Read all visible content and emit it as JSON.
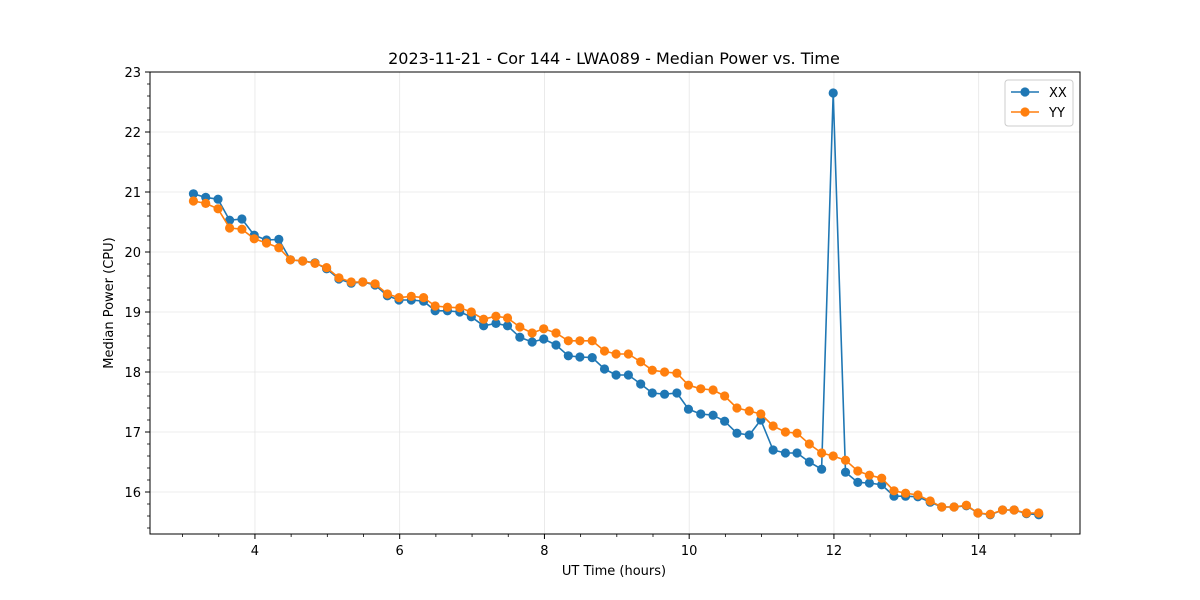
{
  "chart_data": {
    "type": "line",
    "title": "2023-11-21 - Cor 144 - LWA089 - Median Power vs. Time",
    "xlabel": "UT Time (hours)",
    "ylabel": "Median Power (CPU)",
    "xlim": [
      2.55,
      15.4
    ],
    "ylim": [
      15.3,
      23.0
    ],
    "xticks": [
      4,
      6,
      8,
      10,
      12,
      14
    ],
    "xtick_labels": [
      "4",
      "6",
      "8",
      "10",
      "12",
      "14"
    ],
    "yticks": [
      16,
      17,
      18,
      19,
      20,
      21,
      22,
      23
    ],
    "ytick_labels": [
      "16",
      "17",
      "18",
      "19",
      "20",
      "21",
      "22",
      "23"
    ],
    "grid": true,
    "legend_position": "top-right",
    "x": [
      3.15,
      3.32,
      3.49,
      3.65,
      3.82,
      3.99,
      4.16,
      4.33,
      4.49,
      4.66,
      4.83,
      4.99,
      5.16,
      5.33,
      5.49,
      5.66,
      5.83,
      5.99,
      6.16,
      6.33,
      6.49,
      6.66,
      6.83,
      6.99,
      7.16,
      7.33,
      7.49,
      7.66,
      7.83,
      7.99,
      8.16,
      8.33,
      8.49,
      8.66,
      8.83,
      8.99,
      9.16,
      9.33,
      9.49,
      9.66,
      9.83,
      9.99,
      10.16,
      10.33,
      10.49,
      10.66,
      10.83,
      10.99,
      11.16,
      11.33,
      11.49,
      11.66,
      11.83,
      11.99,
      12.16,
      12.33,
      12.49,
      12.66,
      12.83,
      12.99,
      13.16,
      13.33,
      13.49,
      13.66,
      13.83,
      13.99,
      14.16,
      14.33,
      14.49,
      14.66,
      14.83
    ],
    "series": [
      {
        "name": "XX",
        "color": "#1f77b4",
        "values": [
          20.97,
          20.91,
          20.88,
          20.53,
          20.55,
          20.28,
          20.2,
          20.21,
          19.87,
          19.85,
          19.82,
          19.72,
          19.55,
          19.48,
          19.5,
          19.45,
          19.27,
          19.2,
          19.2,
          19.18,
          19.02,
          19.02,
          19.0,
          18.92,
          18.77,
          18.81,
          18.77,
          18.58,
          18.5,
          18.55,
          18.45,
          18.27,
          18.25,
          18.24,
          18.05,
          17.95,
          17.95,
          17.8,
          17.65,
          17.63,
          17.65,
          17.38,
          17.3,
          17.28,
          17.18,
          16.98,
          16.95,
          17.2,
          16.7,
          16.65,
          16.65,
          16.5,
          16.38,
          22.65,
          16.33,
          16.16,
          16.15,
          16.12,
          15.93,
          15.93,
          15.92,
          15.83,
          15.75,
          15.75,
          15.77,
          15.65,
          15.62,
          15.7,
          15.7,
          15.64,
          15.62
        ]
      },
      {
        "name": "YY",
        "color": "#ff7f0e",
        "values": [
          20.85,
          20.81,
          20.72,
          20.4,
          20.38,
          20.22,
          20.15,
          20.07,
          19.87,
          19.85,
          19.81,
          19.74,
          19.57,
          19.5,
          19.5,
          19.47,
          19.3,
          19.24,
          19.26,
          19.24,
          19.1,
          19.08,
          19.07,
          19.0,
          18.88,
          18.93,
          18.9,
          18.75,
          18.65,
          18.72,
          18.65,
          18.52,
          18.52,
          18.52,
          18.35,
          18.3,
          18.3,
          18.17,
          18.03,
          18.0,
          17.98,
          17.78,
          17.72,
          17.7,
          17.6,
          17.4,
          17.35,
          17.3,
          17.1,
          17.0,
          16.98,
          16.8,
          16.65,
          16.6,
          16.53,
          16.35,
          16.28,
          16.23,
          16.02,
          15.98,
          15.95,
          15.85,
          15.75,
          15.75,
          15.78,
          15.65,
          15.63,
          15.7,
          15.7,
          15.65,
          15.65
        ]
      }
    ]
  }
}
